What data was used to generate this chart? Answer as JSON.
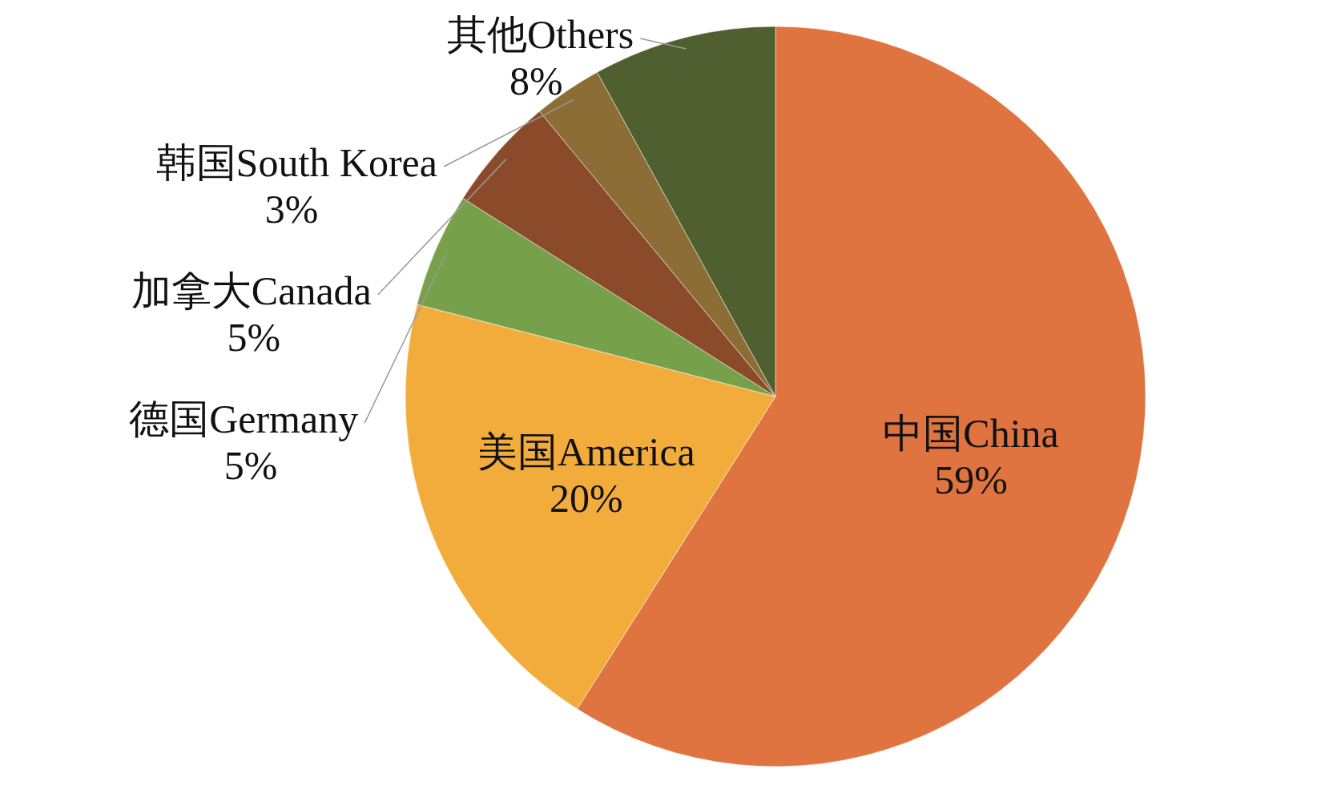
{
  "chart_data": {
    "type": "pie",
    "categories": [
      "中国China",
      "美国America",
      "德国Germany",
      "加拿大Canada",
      "韩国South Korea",
      "其他Others"
    ],
    "values": [
      59,
      20,
      5,
      5,
      3,
      8
    ],
    "colors": [
      "#e07441",
      "#f2ac3c",
      "#77a04a",
      "#8b4a2a",
      "#8b6d35",
      "#4f5f30"
    ],
    "value_labels": [
      "59%",
      "20%",
      "5%",
      "5%",
      "3%",
      "8%"
    ]
  }
}
